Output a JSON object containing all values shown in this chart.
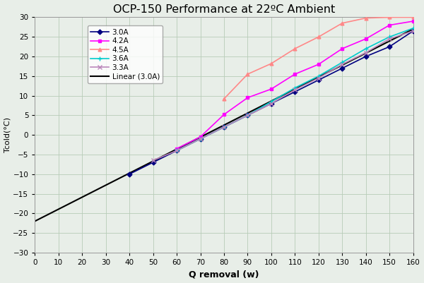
{
  "title": "OCP-150 Performance at 22ºC Ambient",
  "xlabel": "Q removal (w)",
  "ylabel": "Tcold(°C)",
  "xlim": [
    0,
    160
  ],
  "ylim": [
    -30,
    30
  ],
  "xticks": [
    0,
    10,
    20,
    30,
    40,
    50,
    60,
    70,
    80,
    90,
    100,
    110,
    120,
    130,
    140,
    150,
    160
  ],
  "yticks": [
    -30,
    -25,
    -20,
    -15,
    -10,
    -5,
    0,
    5,
    10,
    15,
    20,
    25,
    30
  ],
  "background_color": "#e8eee8",
  "series": {
    "3.0A": {
      "x": [
        40,
        50,
        60,
        70,
        80,
        90,
        100,
        110,
        120,
        130,
        140,
        150,
        160
      ],
      "y": [
        -10.0,
        -7.0,
        -4.0,
        -1.0,
        2.0,
        5.0,
        8.0,
        11.0,
        14.0,
        17.0,
        20.0,
        22.5,
        26.5
      ],
      "color": "#000080",
      "marker": "D",
      "markersize": 3.5,
      "linewidth": 1.2,
      "linestyle": "-"
    },
    "4.2A": {
      "x": [
        60,
        70,
        80,
        90,
        100,
        110,
        120,
        130,
        140,
        150,
        160
      ],
      "y": [
        -3.5,
        -0.5,
        5.2,
        9.5,
        11.7,
        15.5,
        18.0,
        22.0,
        24.5,
        28.0,
        29.0
      ],
      "color": "#FF00FF",
      "marker": "s",
      "markersize": 3.5,
      "linewidth": 1.2,
      "linestyle": "-"
    },
    "4.5A": {
      "x": [
        80,
        90,
        100,
        110,
        120,
        130,
        140,
        150,
        160
      ],
      "y": [
        9.2,
        15.5,
        18.2,
        22.0,
        25.0,
        28.5,
        29.8,
        30.0,
        30.0
      ],
      "color": "#FF8888",
      "marker": "^",
      "markersize": 3.5,
      "linewidth": 1.2,
      "linestyle": "-"
    },
    "3.6A": {
      "x": [
        60,
        70,
        80,
        90,
        100,
        110,
        120,
        130,
        140,
        150,
        160
      ],
      "y": [
        -4.0,
        -1.0,
        2.0,
        5.0,
        8.5,
        12.0,
        15.0,
        18.5,
        22.0,
        25.0,
        27.2
      ],
      "color": "#00CCCC",
      "marker": "+",
      "markersize": 5,
      "linewidth": 1.2,
      "linestyle": "-"
    },
    "3.3A": {
      "x": [
        50,
        60,
        70,
        80,
        90,
        100,
        110,
        120,
        130,
        140,
        150,
        160
      ],
      "y": [
        -6.5,
        -4.0,
        -1.0,
        2.0,
        5.0,
        8.0,
        11.5,
        14.5,
        18.0,
        21.0,
        24.5,
        26.5
      ],
      "color": "#BB88BB",
      "marker": "x",
      "markersize": 4,
      "linewidth": 1.2,
      "linestyle": "-"
    }
  },
  "linear_3A": {
    "x": [
      0,
      160
    ],
    "y": [
      -22.0,
      27.0
    ],
    "color": "#000000",
    "linewidth": 1.5,
    "linestyle": "-"
  },
  "legend_order": [
    "3.0A",
    "4.2A",
    "4.5A",
    "3.6A",
    "3.3A",
    "Linear (3.0A)"
  ],
  "grid_color": "#b8ccb8",
  "figsize": [
    6.0,
    4.01
  ],
  "dpi": 100
}
